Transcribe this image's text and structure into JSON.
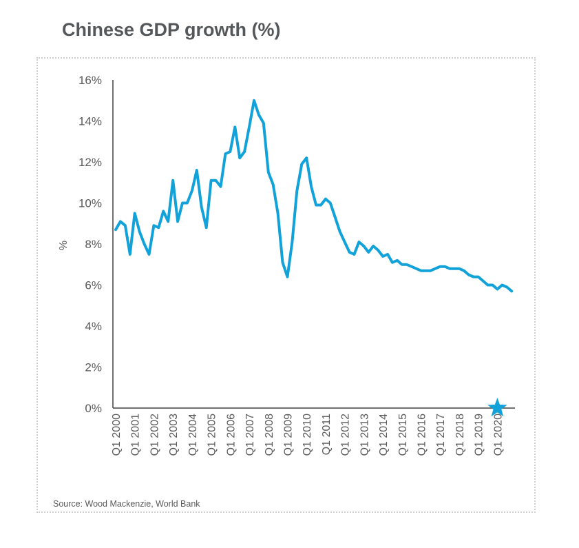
{
  "title": "Chinese GDP growth (%)",
  "source": "Source: Wood Mackenzie, World Bank",
  "colors": {
    "line": "#12a2da",
    "axis": "#404040",
    "text": "#595959",
    "title": "#55585a",
    "frame": "#cfcfcf"
  },
  "marker": {
    "icon": "star-icon",
    "label": "Q1 2020",
    "value": 0
  },
  "chart_data": {
    "type": "line",
    "title": "Chinese GDP growth (%)",
    "xlabel": "",
    "ylabel": "%",
    "ylim": [
      0,
      16
    ],
    "yticks": [
      0,
      2,
      4,
      6,
      8,
      10,
      12,
      14,
      16
    ],
    "ytick_labels": [
      "0%",
      "2%",
      "4%",
      "6%",
      "8%",
      "10%",
      "12%",
      "14%",
      "16%"
    ],
    "xtick_labels": [
      "Q1 2000",
      "Q1 2001",
      "Q1 2002",
      "Q1 2003",
      "Q1 2004",
      "Q1 2005",
      "Q1 2006",
      "Q1 2007",
      "Q1 2008",
      "Q1 2009",
      "Q1 2010",
      "Q1 2011",
      "Q1 2012",
      "Q1 2013",
      "Q1 2014",
      "Q1 2015",
      "Q1 2016",
      "Q1 2017",
      "Q1 2018",
      "Q1 2019",
      "Q1 2020"
    ],
    "grid": false,
    "legend": "none",
    "series": [
      {
        "name": "Chinese GDP growth",
        "start": "Q1 2000",
        "frequency": "quarterly",
        "values": [
          8.7,
          9.1,
          8.9,
          7.5,
          9.5,
          8.6,
          8.0,
          7.5,
          8.9,
          8.8,
          9.6,
          9.1,
          11.1,
          9.1,
          10.0,
          10.0,
          10.6,
          11.6,
          9.8,
          8.8,
          11.1,
          11.1,
          10.8,
          12.4,
          12.5,
          13.7,
          12.2,
          12.5,
          13.7,
          15.0,
          14.3,
          13.9,
          11.5,
          10.9,
          9.5,
          7.1,
          6.4,
          8.1,
          10.6,
          11.9,
          12.2,
          10.8,
          9.9,
          9.9,
          10.2,
          10.0,
          9.3,
          8.6,
          8.1,
          7.6,
          7.5,
          8.1,
          7.9,
          7.6,
          7.9,
          7.7,
          7.4,
          7.5,
          7.1,
          7.2,
          7.0,
          7.0,
          6.9,
          6.8,
          6.7,
          6.7,
          6.7,
          6.8,
          6.9,
          6.9,
          6.8,
          6.8,
          6.8,
          6.7,
          6.5,
          6.4,
          6.4,
          6.2,
          6.0,
          6.0,
          5.8,
          6.0,
          5.9,
          5.7
        ]
      }
    ],
    "annotations": [
      {
        "type": "star-marker",
        "x": "Q1 2020",
        "y": 0
      }
    ]
  }
}
